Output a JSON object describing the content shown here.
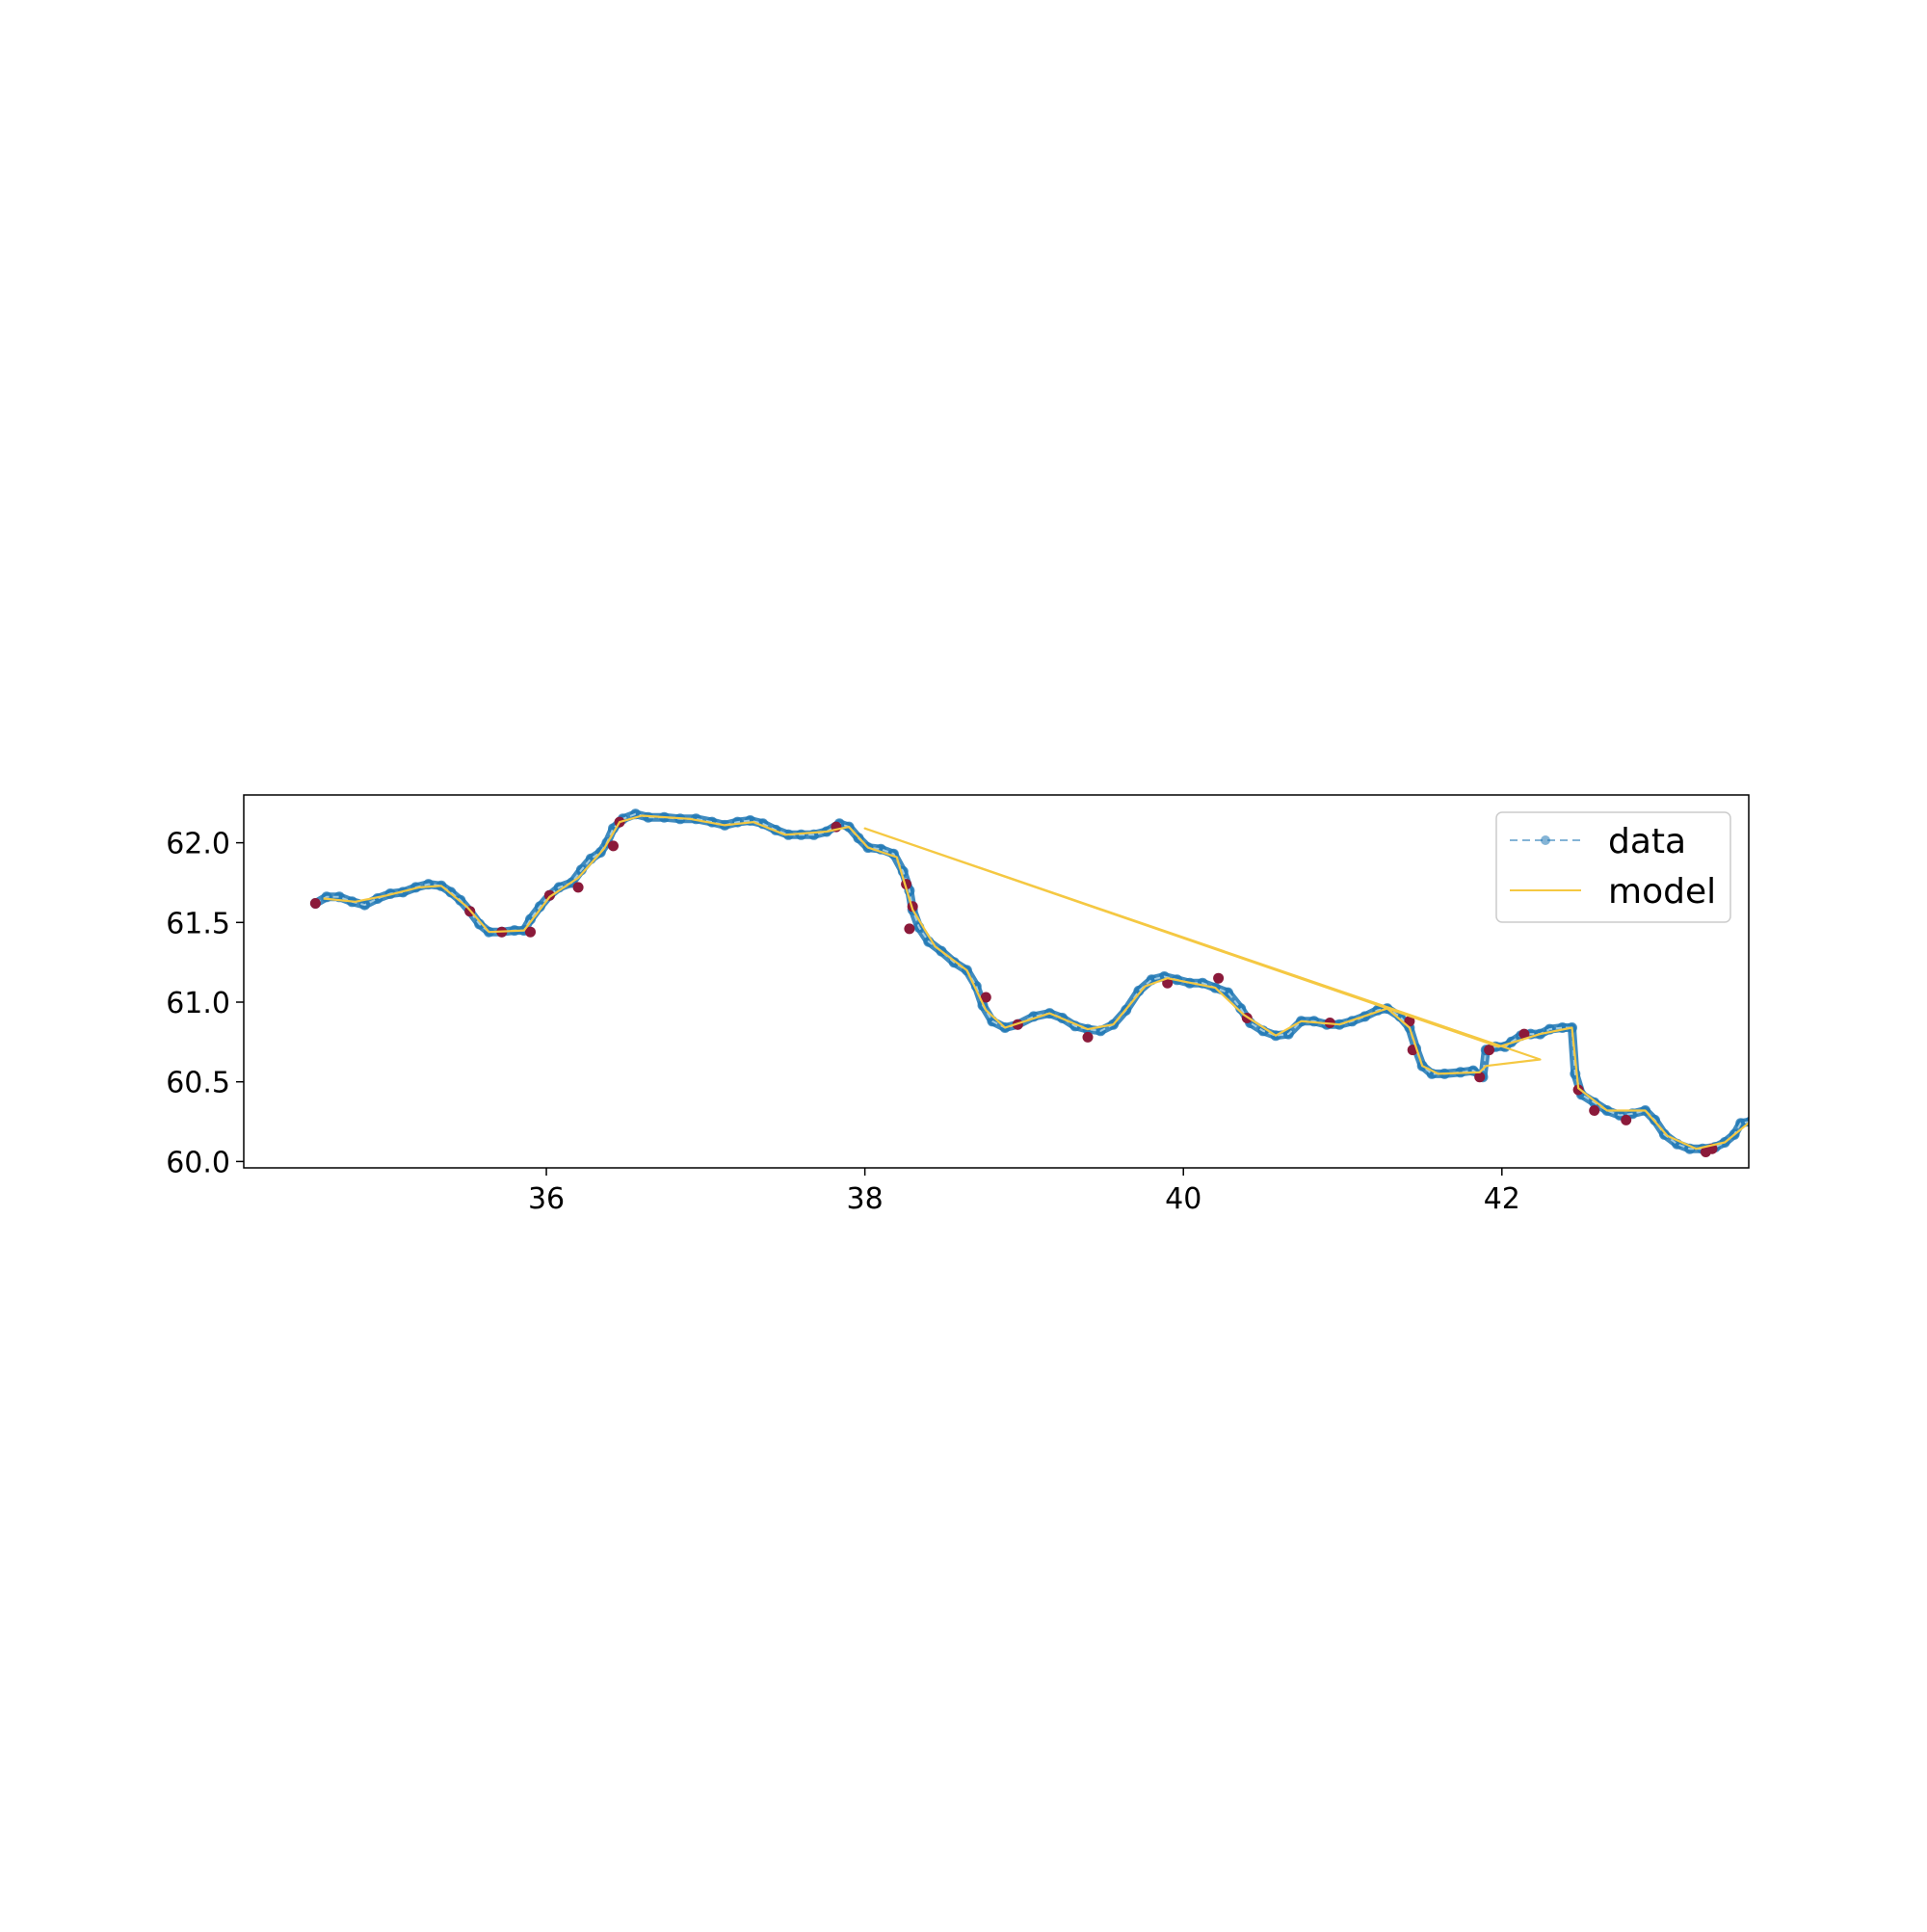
{
  "chart_data": {
    "type": "line",
    "title": "",
    "xlabel": "",
    "ylabel": "",
    "xlim": [
      34.1,
      43.55
    ],
    "ylim": [
      59.96,
      62.3
    ],
    "x_ticks": [
      {
        "value": 36,
        "label": "36"
      },
      {
        "value": 38,
        "label": "38"
      },
      {
        "value": 40,
        "label": "40"
      },
      {
        "value": 42,
        "label": "42"
      }
    ],
    "y_ticks": [
      {
        "value": 60.0,
        "label": "60.0"
      },
      {
        "value": 60.5,
        "label": "60.5"
      },
      {
        "value": 61.0,
        "label": "61.0"
      },
      {
        "value": 61.5,
        "label": "61.5"
      },
      {
        "value": 62.0,
        "label": "62.0"
      }
    ],
    "grid": false,
    "legend_position": "top-right",
    "legend": [
      {
        "label": "data",
        "style": "dashed-marker",
        "color": "#1f77b4"
      },
      {
        "label": "model",
        "style": "solid",
        "color": "#f5c842"
      }
    ],
    "outlier_color": "#8b1a3a",
    "series": [
      {
        "name": "data",
        "color": "#1f77b4",
        "points": [
          [
            34.55,
            61.62
          ],
          [
            34.62,
            61.66
          ],
          [
            34.7,
            61.66
          ],
          [
            34.78,
            61.63
          ],
          [
            34.86,
            61.61
          ],
          [
            34.94,
            61.65
          ],
          [
            35.02,
            61.68
          ],
          [
            35.1,
            61.69
          ],
          [
            35.18,
            61.72
          ],
          [
            35.26,
            61.74
          ],
          [
            35.34,
            61.73
          ],
          [
            35.4,
            61.69
          ],
          [
            35.46,
            61.64
          ],
          [
            35.52,
            61.57
          ],
          [
            35.58,
            61.49
          ],
          [
            35.64,
            61.44
          ],
          [
            35.72,
            61.44
          ],
          [
            35.8,
            61.45
          ],
          [
            35.86,
            61.45
          ],
          [
            35.9,
            61.52
          ],
          [
            35.96,
            61.6
          ],
          [
            36.02,
            61.67
          ],
          [
            36.08,
            61.72
          ],
          [
            36.16,
            61.75
          ],
          [
            36.22,
            61.83
          ],
          [
            36.28,
            61.9
          ],
          [
            36.34,
            61.94
          ],
          [
            36.38,
            62.0
          ],
          [
            36.42,
            62.09
          ],
          [
            36.48,
            62.15
          ],
          [
            36.56,
            62.18
          ],
          [
            36.64,
            62.16
          ],
          [
            36.74,
            62.16
          ],
          [
            36.84,
            62.15
          ],
          [
            36.94,
            62.15
          ],
          [
            37.04,
            62.13
          ],
          [
            37.12,
            62.11
          ],
          [
            37.2,
            62.13
          ],
          [
            37.28,
            62.14
          ],
          [
            37.36,
            62.12
          ],
          [
            37.44,
            62.08
          ],
          [
            37.52,
            62.05
          ],
          [
            37.6,
            62.05
          ],
          [
            37.68,
            62.05
          ],
          [
            37.76,
            62.07
          ],
          [
            37.84,
            62.12
          ],
          [
            37.9,
            62.1
          ],
          [
            37.96,
            62.03
          ],
          [
            38.02,
            61.97
          ],
          [
            38.1,
            61.96
          ],
          [
            38.18,
            61.93
          ],
          [
            38.24,
            61.82
          ],
          [
            38.28,
            61.7
          ],
          [
            38.3,
            61.58
          ],
          [
            38.34,
            61.47
          ],
          [
            38.4,
            61.38
          ],
          [
            38.48,
            61.32
          ],
          [
            38.56,
            61.25
          ],
          [
            38.64,
            61.2
          ],
          [
            38.7,
            61.1
          ],
          [
            38.74,
            60.98
          ],
          [
            38.8,
            60.88
          ],
          [
            38.88,
            60.84
          ],
          [
            38.96,
            60.86
          ],
          [
            39.06,
            60.91
          ],
          [
            39.16,
            60.93
          ],
          [
            39.24,
            60.9
          ],
          [
            39.32,
            60.85
          ],
          [
            39.4,
            60.83
          ],
          [
            39.48,
            60.82
          ],
          [
            39.56,
            60.86
          ],
          [
            39.64,
            60.95
          ],
          [
            39.72,
            61.07
          ],
          [
            39.8,
            61.14
          ],
          [
            39.88,
            61.16
          ],
          [
            39.96,
            61.14
          ],
          [
            40.04,
            61.12
          ],
          [
            40.12,
            61.12
          ],
          [
            40.2,
            61.09
          ],
          [
            40.28,
            61.06
          ],
          [
            40.36,
            60.96
          ],
          [
            40.42,
            60.87
          ],
          [
            40.5,
            60.82
          ],
          [
            40.58,
            60.79
          ],
          [
            40.66,
            60.8
          ],
          [
            40.74,
            60.88
          ],
          [
            40.82,
            60.88
          ],
          [
            40.9,
            60.86
          ],
          [
            40.98,
            60.86
          ],
          [
            41.06,
            60.88
          ],
          [
            41.14,
            60.91
          ],
          [
            41.22,
            60.95
          ],
          [
            41.28,
            60.96
          ],
          [
            41.36,
            60.91
          ],
          [
            41.42,
            60.84
          ],
          [
            41.46,
            60.71
          ],
          [
            41.5,
            60.6
          ],
          [
            41.56,
            60.55
          ],
          [
            41.64,
            60.55
          ],
          [
            41.74,
            60.56
          ],
          [
            41.82,
            60.57
          ],
          [
            41.88,
            60.53
          ],
          [
            41.9,
            60.7
          ],
          [
            41.96,
            60.72
          ],
          [
            42.02,
            60.72
          ],
          [
            42.06,
            60.75
          ],
          [
            42.12,
            60.79
          ],
          [
            42.18,
            60.8
          ],
          [
            42.24,
            60.8
          ],
          [
            42.3,
            60.83
          ],
          [
            42.38,
            60.84
          ],
          [
            42.44,
            60.84
          ],
          [
            42.46,
            60.55
          ],
          [
            42.5,
            60.42
          ],
          [
            42.58,
            60.37
          ],
          [
            42.66,
            60.32
          ],
          [
            42.74,
            60.29
          ],
          [
            42.82,
            60.3
          ],
          [
            42.9,
            60.32
          ],
          [
            42.96,
            60.26
          ],
          [
            43.02,
            60.17
          ],
          [
            43.1,
            60.11
          ],
          [
            43.18,
            60.08
          ],
          [
            43.26,
            60.08
          ],
          [
            43.34,
            60.09
          ],
          [
            43.4,
            60.12
          ],
          [
            43.46,
            60.17
          ],
          [
            43.5,
            60.24
          ],
          [
            43.56,
            60.25
          ]
        ]
      },
      {
        "name": "model",
        "color": "#f5c842",
        "points": [
          [
            34.6,
            61.65
          ],
          [
            34.8,
            61.63
          ],
          [
            35.0,
            61.67
          ],
          [
            35.2,
            61.72
          ],
          [
            35.34,
            61.73
          ],
          [
            35.5,
            61.6
          ],
          [
            35.64,
            61.44
          ],
          [
            35.86,
            61.45
          ],
          [
            36.02,
            61.66
          ],
          [
            36.2,
            61.78
          ],
          [
            36.36,
            61.96
          ],
          [
            36.46,
            62.13
          ],
          [
            36.6,
            62.17
          ],
          [
            36.9,
            62.15
          ],
          [
            37.12,
            62.11
          ],
          [
            37.3,
            62.13
          ],
          [
            37.5,
            62.05
          ],
          [
            37.76,
            62.07
          ],
          [
            37.9,
            62.1
          ],
          [
            38.02,
            61.97
          ],
          [
            38.2,
            61.91
          ],
          [
            38.3,
            61.58
          ],
          [
            38.44,
            61.35
          ],
          [
            38.64,
            61.2
          ],
          [
            38.76,
            60.95
          ],
          [
            38.88,
            60.84
          ],
          [
            39.16,
            60.93
          ],
          [
            39.4,
            60.83
          ],
          [
            39.56,
            60.86
          ],
          [
            39.76,
            61.1
          ],
          [
            39.9,
            61.15
          ],
          [
            40.2,
            61.09
          ],
          [
            40.38,
            60.92
          ],
          [
            40.58,
            60.79
          ],
          [
            40.74,
            60.88
          ],
          [
            40.98,
            60.86
          ],
          [
            41.28,
            60.96
          ],
          [
            41.42,
            60.84
          ],
          [
            41.5,
            60.6
          ],
          [
            41.6,
            60.55
          ],
          [
            41.86,
            60.56
          ],
          [
            41.9,
            60.6
          ],
          [
            42.24,
            60.64
          ],
          [
            38.0,
            62.09
          ],
          [
            41.98,
            60.72
          ],
          [
            42.24,
            60.8
          ],
          [
            42.44,
            60.84
          ],
          [
            42.48,
            60.46
          ],
          [
            42.66,
            60.32
          ],
          [
            42.9,
            60.32
          ],
          [
            43.04,
            60.16
          ],
          [
            43.22,
            60.08
          ],
          [
            43.4,
            60.12
          ],
          [
            43.56,
            60.25
          ]
        ]
      },
      {
        "name": "",
        "color": "#8b1a3a",
        "points": [
          [
            34.55,
            61.62
          ],
          [
            35.52,
            61.57
          ],
          [
            35.72,
            61.44
          ],
          [
            35.9,
            61.44
          ],
          [
            36.02,
            61.67
          ],
          [
            36.2,
            61.72
          ],
          [
            36.42,
            61.98
          ],
          [
            36.46,
            62.13
          ],
          [
            37.82,
            62.1
          ],
          [
            38.26,
            61.74
          ],
          [
            38.3,
            61.6
          ],
          [
            38.28,
            61.46
          ],
          [
            38.76,
            61.03
          ],
          [
            38.96,
            60.86
          ],
          [
            39.4,
            60.78
          ],
          [
            39.9,
            61.12
          ],
          [
            40.22,
            61.15
          ],
          [
            40.4,
            60.9
          ],
          [
            40.92,
            60.87
          ],
          [
            41.42,
            60.88
          ],
          [
            41.44,
            60.7
          ],
          [
            41.86,
            60.53
          ],
          [
            41.92,
            60.7
          ],
          [
            42.14,
            60.8
          ],
          [
            42.48,
            60.45
          ],
          [
            42.58,
            60.32
          ],
          [
            42.78,
            60.26
          ],
          [
            43.28,
            60.06
          ],
          [
            43.32,
            60.08
          ]
        ]
      }
    ]
  }
}
